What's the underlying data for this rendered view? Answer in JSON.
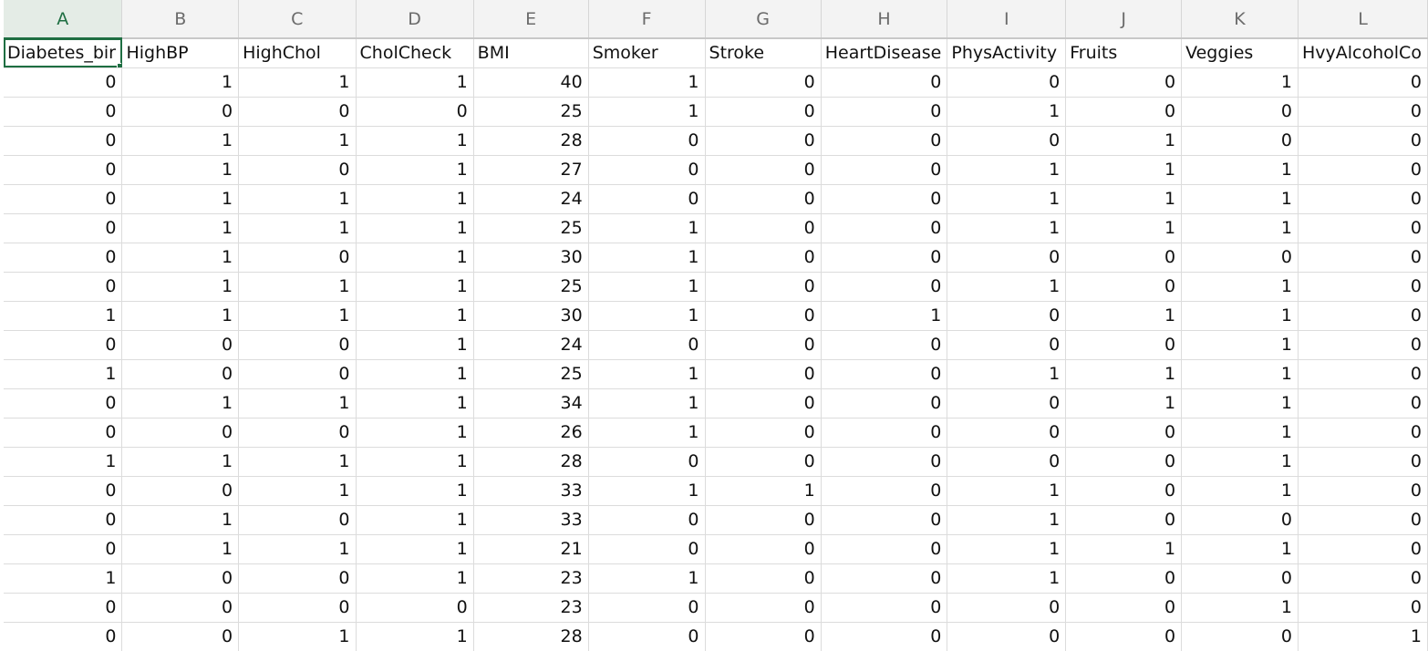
{
  "sheet": {
    "columns": [
      "A",
      "B",
      "C",
      "D",
      "E",
      "F",
      "G",
      "H",
      "I",
      "J",
      "K",
      "L"
    ],
    "active_column": "A",
    "headers": [
      "Diabetes_bir",
      "HighBP",
      "HighChol",
      "CholCheck",
      "BMI",
      "Smoker",
      "Stroke",
      "HeartDisease",
      "PhysActivity",
      "Fruits",
      "Veggies",
      "HvyAlcoholCo"
    ],
    "rows": [
      [
        "0",
        "1",
        "1",
        "1",
        "40",
        "1",
        "0",
        "0",
        "0",
        "0",
        "1",
        "0"
      ],
      [
        "0",
        "0",
        "0",
        "0",
        "25",
        "1",
        "0",
        "0",
        "1",
        "0",
        "0",
        "0"
      ],
      [
        "0",
        "1",
        "1",
        "1",
        "28",
        "0",
        "0",
        "0",
        "0",
        "1",
        "0",
        "0"
      ],
      [
        "0",
        "1",
        "0",
        "1",
        "27",
        "0",
        "0",
        "0",
        "1",
        "1",
        "1",
        "0"
      ],
      [
        "0",
        "1",
        "1",
        "1",
        "24",
        "0",
        "0",
        "0",
        "1",
        "1",
        "1",
        "0"
      ],
      [
        "0",
        "1",
        "1",
        "1",
        "25",
        "1",
        "0",
        "0",
        "1",
        "1",
        "1",
        "0"
      ],
      [
        "0",
        "1",
        "0",
        "1",
        "30",
        "1",
        "0",
        "0",
        "0",
        "0",
        "0",
        "0"
      ],
      [
        "0",
        "1",
        "1",
        "1",
        "25",
        "1",
        "0",
        "0",
        "1",
        "0",
        "1",
        "0"
      ],
      [
        "1",
        "1",
        "1",
        "1",
        "30",
        "1",
        "0",
        "1",
        "0",
        "1",
        "1",
        "0"
      ],
      [
        "0",
        "0",
        "0",
        "1",
        "24",
        "0",
        "0",
        "0",
        "0",
        "0",
        "1",
        "0"
      ],
      [
        "1",
        "0",
        "0",
        "1",
        "25",
        "1",
        "0",
        "0",
        "1",
        "1",
        "1",
        "0"
      ],
      [
        "0",
        "1",
        "1",
        "1",
        "34",
        "1",
        "0",
        "0",
        "0",
        "1",
        "1",
        "0"
      ],
      [
        "0",
        "0",
        "0",
        "1",
        "26",
        "1",
        "0",
        "0",
        "0",
        "0",
        "1",
        "0"
      ],
      [
        "1",
        "1",
        "1",
        "1",
        "28",
        "0",
        "0",
        "0",
        "0",
        "0",
        "1",
        "0"
      ],
      [
        "0",
        "0",
        "1",
        "1",
        "33",
        "1",
        "1",
        "0",
        "1",
        "0",
        "1",
        "0"
      ],
      [
        "0",
        "1",
        "0",
        "1",
        "33",
        "0",
        "0",
        "0",
        "1",
        "0",
        "0",
        "0"
      ],
      [
        "0",
        "1",
        "1",
        "1",
        "21",
        "0",
        "0",
        "0",
        "1",
        "1",
        "1",
        "0"
      ],
      [
        "1",
        "0",
        "0",
        "1",
        "23",
        "1",
        "0",
        "0",
        "1",
        "0",
        "0",
        "0"
      ],
      [
        "0",
        "0",
        "0",
        "0",
        "23",
        "0",
        "0",
        "0",
        "0",
        "0",
        "1",
        "0"
      ],
      [
        "0",
        "0",
        "1",
        "1",
        "28",
        "0",
        "0",
        "0",
        "0",
        "0",
        "0",
        "1"
      ]
    ]
  },
  "colors": {
    "accent": "#1e6e42",
    "gridline": "#dcdcdc",
    "header_bg": "#f3f3f3"
  }
}
